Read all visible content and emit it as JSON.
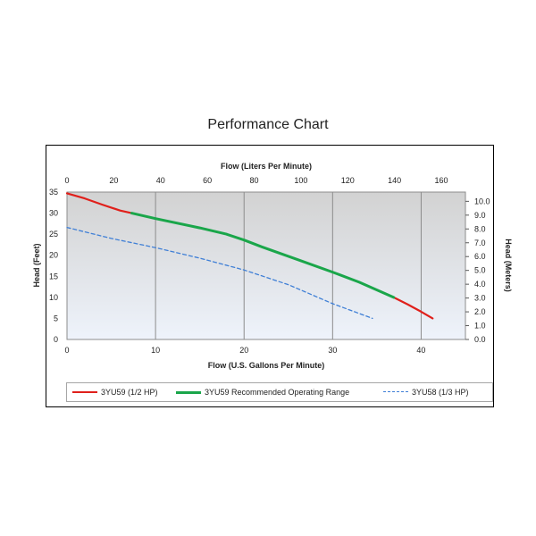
{
  "chart_data": {
    "type": "line",
    "title": "Performance Chart",
    "xlabel": "Flow (U.S. Gallons Per Minute)",
    "ylabel": "Head (Feet)",
    "x2label": "Flow (Liters Per Minute)",
    "y2label": "Head (Meters)",
    "xlim": [
      0,
      45
    ],
    "ylim": [
      0,
      35
    ],
    "x2lim": [
      0,
      170.3
    ],
    "y2lim": [
      0,
      10.67
    ],
    "xticks": [
      "0",
      "10",
      "20",
      "30",
      "40"
    ],
    "yticks": [
      "0",
      "5",
      "10",
      "15",
      "20",
      "25",
      "30",
      "35"
    ],
    "x2ticks": [
      "0",
      "20",
      "40",
      "60",
      "80",
      "100",
      "120",
      "140",
      "160"
    ],
    "y2ticks": [
      "0.0",
      "1.0",
      "2.0",
      "3.0",
      "4.0",
      "5.0",
      "6.0",
      "7.0",
      "8.0",
      "9.0",
      "10.0"
    ],
    "grid": "vertical",
    "legend": "bottom",
    "series": [
      {
        "name": "3YU59 (1/2 HP)",
        "color": "#e0201b",
        "style": "solid",
        "x": [
          0,
          2,
          4,
          6,
          7.3
        ],
        "y": [
          34.7,
          33.5,
          32.0,
          30.6,
          30.0
        ],
        "x_end": [
          36.9,
          38.5,
          40,
          41.3
        ],
        "y_end": [
          10.0,
          8.3,
          6.6,
          5.0
        ]
      },
      {
        "name": "3YU59 Recommended Operating Range",
        "color": "#1aa64a",
        "style": "solid",
        "x": [
          7.3,
          10,
          15,
          18,
          20,
          22,
          26,
          30,
          33,
          36.9
        ],
        "y": [
          30.0,
          28.7,
          26.5,
          25.0,
          23.6,
          22.0,
          19.0,
          16.0,
          13.6,
          10.0
        ]
      },
      {
        "name": "3YU58 (1/3 HP)",
        "color": "#3f7fd6",
        "style": "dashed",
        "x": [
          0,
          5,
          10,
          15,
          20,
          25,
          30,
          34.5
        ],
        "y": [
          26.6,
          24.0,
          21.8,
          19.3,
          16.5,
          13.0,
          8.5,
          5.0
        ]
      }
    ]
  }
}
